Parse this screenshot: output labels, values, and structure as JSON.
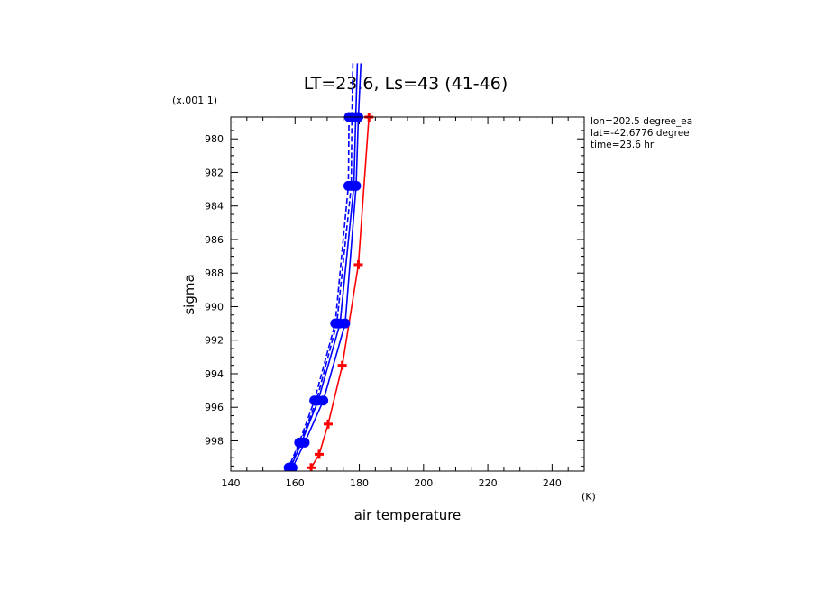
{
  "chart_data": {
    "type": "line",
    "title": "LT=23.6, Ls=43 (41-46)",
    "xlabel": "air temperature",
    "ylabel": "sigma",
    "x_unit": "(K)",
    "y_scale_label": "(x.001 1)",
    "xlim": [
      140,
      250
    ],
    "ylim": [
      999.8,
      978.7
    ],
    "x_ticks": [
      140,
      160,
      180,
      200,
      220,
      240
    ],
    "y_ticks": [
      980,
      982,
      984,
      986,
      988,
      990,
      992,
      994,
      996,
      998
    ],
    "info_lines": [
      "lon=202.5 degree_ea",
      "lat=-42.6776 degree",
      "time=23.6 hr"
    ],
    "series": [
      {
        "name": "blue-solid-1",
        "color": "#0000ff",
        "style": "solid",
        "marker": "dot",
        "points": [
          [
            180.5,
            975.5
          ],
          [
            179.7,
            978.7
          ],
          [
            179.0,
            982.8
          ],
          [
            175.6,
            991.0
          ],
          [
            168.8,
            995.6
          ],
          [
            163.0,
            998.1
          ],
          [
            159.2,
            999.6
          ]
        ]
      },
      {
        "name": "blue-solid-2",
        "color": "#0000ff",
        "style": "solid",
        "marker": "dot",
        "points": [
          [
            179.4,
            975.5
          ],
          [
            178.9,
            978.7
          ],
          [
            178.3,
            982.8
          ],
          [
            174.0,
            991.0
          ],
          [
            167.2,
            995.6
          ],
          [
            162.0,
            998.1
          ],
          [
            158.6,
            999.6
          ]
        ]
      },
      {
        "name": "blue-dashed-1",
        "color": "#0000ff",
        "style": "dashed",
        "marker": "dot",
        "points": [
          [
            178.0,
            975.5
          ],
          [
            177.7,
            978.7
          ],
          [
            177.5,
            982.8
          ],
          [
            173.0,
            991.0
          ],
          [
            166.7,
            995.6
          ],
          [
            161.6,
            998.1
          ],
          [
            158.2,
            999.6
          ]
        ]
      },
      {
        "name": "blue-dashed-2",
        "color": "#0000ff",
        "style": "dashed",
        "marker": "dot",
        "points": [
          [
            176.8,
            978.7
          ],
          [
            176.6,
            982.8
          ],
          [
            172.5,
            991.0
          ],
          [
            166.0,
            995.6
          ],
          [
            161.3,
            998.1
          ],
          [
            158.0,
            999.6
          ]
        ]
      },
      {
        "name": "red-solid",
        "color": "#ff0000",
        "style": "solid",
        "marker": "plus",
        "points": [
          [
            183.0,
            978.7
          ],
          [
            179.7,
            987.5
          ],
          [
            174.7,
            993.5
          ],
          [
            170.3,
            997.0
          ],
          [
            167.5,
            998.8
          ],
          [
            165.0,
            999.6
          ]
        ]
      }
    ]
  }
}
